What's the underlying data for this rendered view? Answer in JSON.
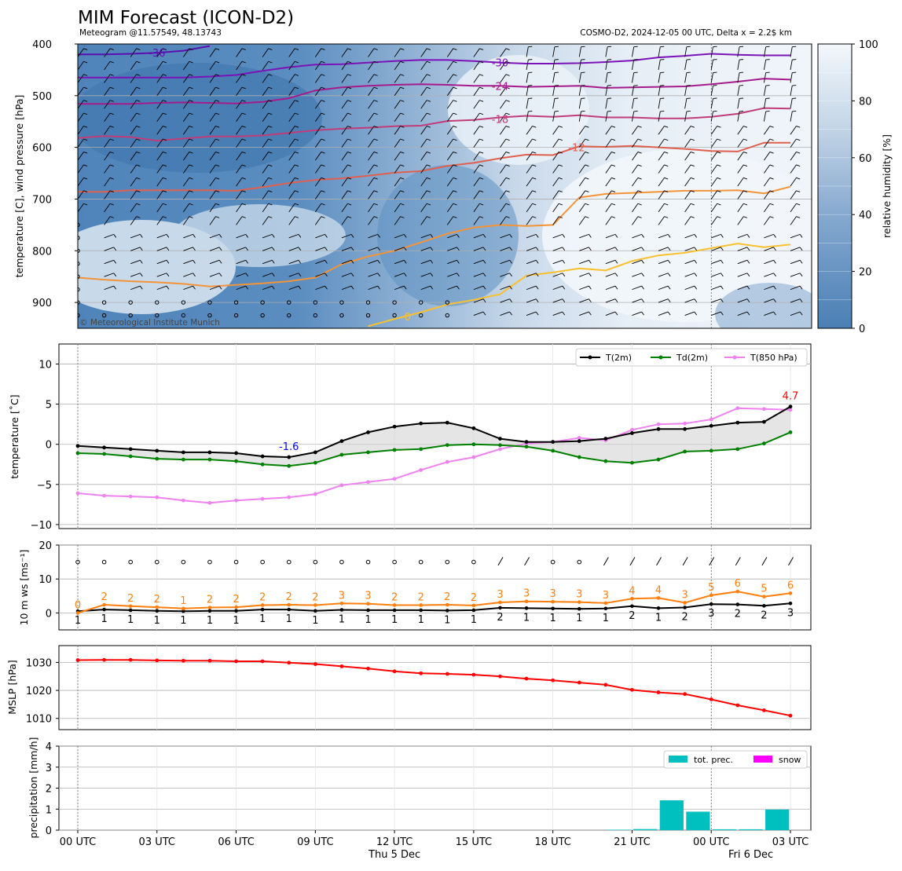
{
  "header": {
    "title": "MIM Forecast (ICON-D2)",
    "subtitle_left": "Meteogram @11.57549, 48.13743",
    "subtitle_right": "COSMO-D2, 2024-12-05 00 UTC, Delta x = 2.2$ km"
  },
  "colors": {
    "t2m": "#000000",
    "td2m": "#008000",
    "t850": "#ee82ee",
    "wind_speed": "#ff7f0e",
    "mslp": "#ff0000",
    "tot_prec": "#00bfbf",
    "snow": "#ff00ff",
    "humidity_dark": "#4a7fb5",
    "humidity_light": "#f4f8fc"
  },
  "time_axis": {
    "hours": [
      0,
      1,
      2,
      3,
      4,
      5,
      6,
      7,
      8,
      9,
      10,
      11,
      12,
      13,
      14,
      15,
      16,
      17,
      18,
      19,
      20,
      21,
      22,
      23,
      24,
      25,
      26,
      27
    ],
    "tick_labels": [
      {
        "hour": 0,
        "label": "00 UTC"
      },
      {
        "hour": 3,
        "label": "03 UTC"
      },
      {
        "hour": 6,
        "label": "06 UTC"
      },
      {
        "hour": 9,
        "label": "09 UTC"
      },
      {
        "hour": 12,
        "label": "12 UTC"
      },
      {
        "hour": 15,
        "label": "15 UTC"
      },
      {
        "hour": 18,
        "label": "18 UTC"
      },
      {
        "hour": 21,
        "label": "21 UTC"
      },
      {
        "hour": 24,
        "label": "00 UTC"
      },
      {
        "hour": 27,
        "label": "03 UTC"
      }
    ],
    "day_labels": [
      {
        "hour": 12,
        "label": "Thu 5 Dec"
      },
      {
        "hour": 25.5,
        "label": "Fri 6 Dec"
      }
    ]
  },
  "chart_data": [
    {
      "type": "heatmap",
      "panel": "upper_air",
      "ylabel": "temperature [C], wind pressure [hPa]",
      "ylim": [
        950,
        400
      ],
      "yticks": [
        400,
        500,
        600,
        700,
        800,
        900
      ],
      "colorbar": {
        "label": "relative humidity [%]",
        "range": [
          0,
          100
        ],
        "ticks": [
          0,
          20,
          40,
          60,
          80,
          100
        ]
      },
      "copyright": "© Meteorological Institute Munich",
      "isotherms": [
        {
          "label": "-36",
          "hours": [
            0,
            1,
            2,
            3,
            4,
            5
          ],
          "values": [
            420,
            420,
            419,
            417,
            413,
            404
          ]
        },
        {
          "label": "-30",
          "hours": [
            0,
            1,
            2,
            3,
            4,
            5,
            6,
            7,
            8,
            9,
            10,
            11,
            12,
            13,
            14,
            15,
            16,
            17,
            18,
            19,
            20,
            21,
            22,
            23,
            24,
            25,
            26,
            27
          ],
          "values": [
            465,
            465,
            465,
            465,
            465,
            463,
            460,
            452,
            445,
            440,
            439,
            436,
            433,
            431,
            431,
            433,
            436,
            438,
            438,
            437,
            435,
            432,
            426,
            423,
            419,
            421,
            422,
            422
          ]
        },
        {
          "label": "-24",
          "hours": [
            0,
            1,
            2,
            3,
            4,
            5,
            6,
            7,
            8,
            9,
            10,
            11,
            12,
            13,
            14,
            15,
            16,
            17,
            18,
            19,
            20,
            21,
            22,
            23,
            24,
            25,
            26,
            27
          ],
          "values": [
            516,
            516,
            516,
            514,
            513,
            514,
            515,
            512,
            505,
            490,
            484,
            481,
            479,
            478,
            479,
            481,
            481,
            483,
            482,
            481,
            485,
            484,
            483,
            482,
            478,
            473,
            467,
            469
          ]
        },
        {
          "label": "-18",
          "hours": [
            0,
            1,
            2,
            3,
            4,
            5,
            6,
            7,
            8,
            9,
            10,
            11,
            12,
            13,
            14,
            15,
            16,
            17,
            18,
            19,
            20,
            21,
            22,
            23,
            24,
            25,
            26,
            27
          ],
          "values": [
            582,
            578,
            580,
            587,
            583,
            579,
            579,
            577,
            572,
            567,
            564,
            562,
            559,
            558,
            549,
            547,
            542,
            539,
            541,
            538,
            542,
            542,
            544,
            544,
            541,
            535,
            524,
            525
          ]
        },
        {
          "label": "-12",
          "hours": [
            0,
            1,
            2,
            3,
            4,
            5,
            6,
            7,
            8,
            9,
            10,
            11,
            12,
            13,
            14,
            15,
            16,
            17,
            18,
            19,
            20,
            21,
            22,
            23,
            24,
            25,
            26,
            27
          ],
          "values": [
            686,
            686,
            683,
            683,
            683,
            683,
            684,
            677,
            669,
            663,
            660,
            655,
            649,
            646,
            636,
            630,
            621,
            614,
            615,
            598,
            599,
            597,
            600,
            603,
            607,
            608,
            591,
            591
          ]
        },
        {
          "label": "-6",
          "hours": [
            0,
            1,
            2,
            3,
            4,
            5,
            6,
            7,
            8,
            9,
            10,
            11,
            12,
            13,
            14,
            15,
            16,
            17,
            18,
            19,
            20,
            21,
            22,
            23,
            24,
            25,
            26,
            27
          ],
          "values": [
            852,
            856,
            859,
            861,
            864,
            869,
            866,
            863,
            859,
            852,
            826,
            811,
            800,
            784,
            767,
            755,
            750,
            752,
            750,
            697,
            690,
            688,
            686,
            684,
            684,
            683,
            689,
            676
          ]
        },
        {
          "label": "0",
          "hours": [
            11,
            12,
            13,
            14,
            15,
            16,
            17,
            18,
            19,
            20,
            21,
            22,
            23,
            24,
            25,
            26,
            27
          ],
          "values": [
            946,
            932,
            919,
            904,
            895,
            884,
            848,
            842,
            834,
            838,
            820,
            809,
            804,
            795,
            786,
            793,
            788
          ]
        }
      ],
      "contour_labels": [
        {
          "text": "-36",
          "hour": 3.0,
          "p": 417
        },
        {
          "text": "-30",
          "hour": 16.0,
          "p": 436
        },
        {
          "text": "-24",
          "hour": 16.0,
          "p": 481
        },
        {
          "text": "-18",
          "hour": 16.0,
          "p": 545
        },
        {
          "text": "-12",
          "hour": 18.9,
          "p": 600
        },
        {
          "text": "0",
          "hour": 12.5,
          "p": 927
        }
      ],
      "calm_pressures": [
        750,
        775,
        800,
        825,
        850,
        875,
        900,
        925
      ]
    },
    {
      "type": "line",
      "panel": "temperature",
      "ylabel": "temperature [$^\\circ$C]",
      "ylim": [
        -10.5,
        12.5
      ],
      "yticks": [
        -10,
        -5,
        0,
        5,
        10
      ],
      "legend_position": "top-right",
      "series": [
        {
          "name": "T(2m)",
          "values": [
            -0.2,
            -0.4,
            -0.6,
            -0.8,
            -1.0,
            -1.0,
            -1.1,
            -1.5,
            -1.6,
            -1.0,
            0.4,
            1.5,
            2.2,
            2.6,
            2.7,
            2.0,
            0.7,
            0.3,
            0.3,
            0.4,
            0.7,
            1.4,
            1.9,
            1.9,
            2.3,
            2.7,
            2.8,
            4.7
          ]
        },
        {
          "name": "Td(2m)",
          "values": [
            -1.1,
            -1.2,
            -1.5,
            -1.8,
            -1.9,
            -1.9,
            -2.1,
            -2.5,
            -2.7,
            -2.3,
            -1.3,
            -1.0,
            -0.7,
            -0.6,
            -0.1,
            0.0,
            -0.1,
            -0.3,
            -0.8,
            -1.6,
            -2.1,
            -2.3,
            -1.9,
            -0.9,
            -0.8,
            -0.6,
            0.1,
            1.5
          ]
        },
        {
          "name": "T(850 hPa)",
          "values": [
            -6.1,
            -6.4,
            -6.5,
            -6.6,
            -7.0,
            -7.3,
            -7.0,
            -6.8,
            -6.6,
            -6.2,
            -5.1,
            -4.7,
            -4.3,
            -3.2,
            -2.2,
            -1.6,
            -0.6,
            0.1,
            0.3,
            0.8,
            0.5,
            1.8,
            2.5,
            2.6,
            3.1,
            4.5,
            4.4,
            4.3
          ]
        }
      ],
      "annotations": [
        {
          "text": "-1.6",
          "hour": 8,
          "value": -1.6,
          "color": "#0000ff"
        },
        {
          "text": "4.7",
          "hour": 27,
          "value": 4.7,
          "color": "#ff0000"
        }
      ]
    },
    {
      "type": "line",
      "panel": "wind",
      "ylabel": "10 m ws [ms$^{-1}$]",
      "ylim": [
        -5,
        20
      ],
      "yticks": [
        0,
        10,
        20
      ],
      "series": [
        {
          "name": "",
          "values": [
            0.5,
            1.0,
            0.8,
            0.6,
            0.5,
            0.6,
            0.6,
            1.0,
            1.0,
            0.6,
            0.9,
            0.8,
            0.8,
            0.8,
            0.7,
            0.8,
            1.5,
            1.4,
            1.3,
            1.2,
            1.3,
            2.0,
            1.4,
            1.6,
            2.6,
            2.5,
            2.1,
            2.8
          ]
        },
        {
          "name": "",
          "values": [
            0,
            2.4,
            2.0,
            1.7,
            1.3,
            1.6,
            1.7,
            2.3,
            2.4,
            2.3,
            2.8,
            2.7,
            2.3,
            2.3,
            2.4,
            2.2,
            3.1,
            3.4,
            3.3,
            3.2,
            2.9,
            4.2,
            4.4,
            3.0,
            5.2,
            6.3,
            4.8,
            5.8
          ]
        }
      ],
      "gust_labels": [
        "0",
        "2",
        "2",
        "2",
        "1",
        "2",
        "2",
        "2",
        "2",
        "2",
        "3",
        "3",
        "2",
        "2",
        "2",
        "2",
        "3",
        "3",
        "3",
        "3",
        "3",
        "4",
        "4",
        "3",
        "5",
        "6",
        "5",
        "6"
      ],
      "speed_labels": [
        "1",
        "1",
        "1",
        "1",
        "1",
        "1",
        "1",
        "1",
        "1",
        "1",
        "1",
        "1",
        "1",
        "1",
        "1",
        "1",
        "2",
        "1",
        "1",
        "1",
        "1",
        "2",
        "1",
        "2",
        "3",
        "2",
        "2",
        "3"
      ],
      "barb_kind": [
        "calm",
        "calm",
        "calm",
        "calm",
        "calm",
        "calm",
        "calm",
        "calm",
        "calm",
        "calm",
        "calm",
        "calm",
        "calm",
        "calm",
        "calm",
        "calm",
        "barb",
        "barb",
        "calm",
        "calm",
        "barb",
        "barb",
        "barb",
        "barb",
        "barb",
        "barb",
        "barb",
        "barb"
      ]
    },
    {
      "type": "line",
      "panel": "pressure",
      "ylabel": "MSLP [hPa]",
      "ylim": [
        1006,
        1036
      ],
      "yticks": [
        1010,
        1020,
        1030
      ],
      "series": [
        {
          "name": "",
          "values": [
            1030.8,
            1030.9,
            1030.9,
            1030.7,
            1030.6,
            1030.6,
            1030.4,
            1030.4,
            1029.9,
            1029.4,
            1028.6,
            1027.8,
            1026.8,
            1026.1,
            1025.9,
            1025.6,
            1025.0,
            1024.2,
            1023.6,
            1022.8,
            1022.0,
            1020.2,
            1019.3,
            1018.7,
            1016.8,
            1014.7,
            1012.9,
            1011.0
          ]
        }
      ]
    },
    {
      "type": "bar",
      "panel": "precipitation",
      "ylabel": "precipitation [mm/h]",
      "ylim": [
        0,
        4
      ],
      "yticks": [
        0,
        1,
        2,
        3,
        4
      ],
      "legend_position": "top-right",
      "series": [
        {
          "name": "tot. prec.",
          "values": [
            0,
            0,
            0,
            0,
            0,
            0,
            0,
            0,
            0,
            0,
            0,
            0,
            0,
            0,
            0,
            0,
            0,
            0,
            0,
            0,
            0,
            0.02,
            0.05,
            1.42,
            0.88,
            0.04,
            0.04,
            0.98
          ]
        },
        {
          "name": "snow",
          "values": [
            0,
            0,
            0,
            0,
            0,
            0,
            0,
            0,
            0,
            0,
            0,
            0,
            0,
            0,
            0,
            0,
            0,
            0,
            0,
            0,
            0,
            0,
            0,
            0,
            0,
            0,
            0,
            0
          ]
        }
      ]
    }
  ]
}
